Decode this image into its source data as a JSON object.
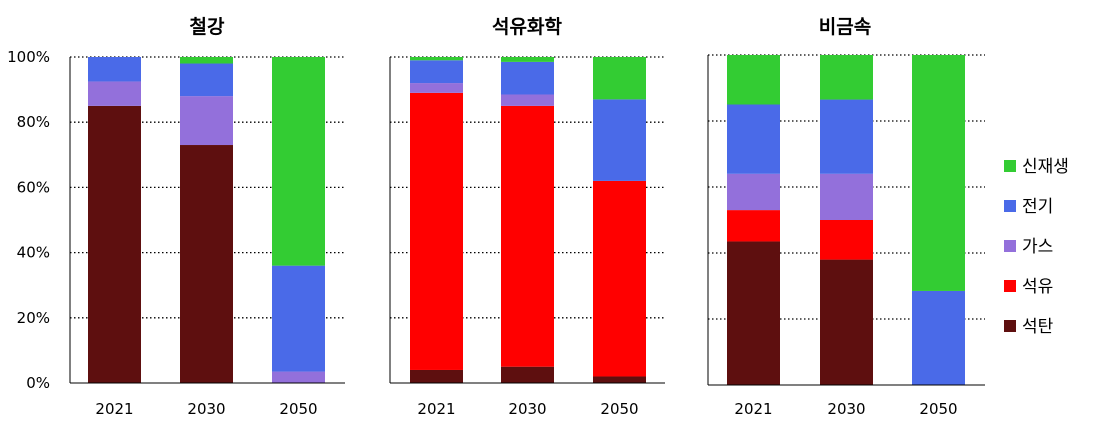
{
  "chart_data": [
    {
      "type": "bar",
      "stacked": true,
      "title": "철강",
      "categories": [
        "2021",
        "2030",
        "2050"
      ],
      "ylim": [
        0,
        100
      ],
      "yticks": [
        "0%",
        "20%",
        "40%",
        "60%",
        "80%",
        "100%"
      ],
      "grid": true,
      "series": [
        {
          "name": "석탄",
          "color": "#5e0f0f",
          "values": [
            85,
            73,
            0
          ]
        },
        {
          "name": "석유",
          "color": "#ff0000",
          "values": [
            0,
            0,
            0
          ]
        },
        {
          "name": "가스",
          "color": "#9370db",
          "values": [
            7.5,
            15,
            3.5
          ]
        },
        {
          "name": "전기",
          "color": "#4a6ae8",
          "values": [
            7.5,
            10,
            32.5
          ]
        },
        {
          "name": "신재생",
          "color": "#33cc33",
          "values": [
            0,
            2,
            64
          ]
        }
      ]
    },
    {
      "type": "bar",
      "stacked": true,
      "title": "석유화학",
      "categories": [
        "2021",
        "2030",
        "2050"
      ],
      "ylim": [
        0,
        100
      ],
      "grid": true,
      "series": [
        {
          "name": "석탄",
          "color": "#5e0f0f",
          "values": [
            4,
            5,
            2
          ]
        },
        {
          "name": "석유",
          "color": "#ff0000",
          "values": [
            85,
            80,
            60
          ]
        },
        {
          "name": "가스",
          "color": "#9370db",
          "values": [
            3,
            3.5,
            0
          ]
        },
        {
          "name": "전기",
          "color": "#4a6ae8",
          "values": [
            7,
            10,
            25
          ]
        },
        {
          "name": "신재생",
          "color": "#33cc33",
          "values": [
            1,
            1.5,
            13
          ]
        }
      ]
    },
    {
      "type": "bar",
      "stacked": true,
      "title": "비금속",
      "categories": [
        "2021",
        "2030",
        "2050"
      ],
      "ylim": [
        0,
        100
      ],
      "grid": true,
      "series": [
        {
          "name": "석탄",
          "color": "#5e0f0f",
          "values": [
            43.5,
            38,
            0
          ]
        },
        {
          "name": "석유",
          "color": "#ff0000",
          "values": [
            9.5,
            12,
            0
          ]
        },
        {
          "name": "가스",
          "color": "#9370db",
          "values": [
            11,
            14,
            0
          ]
        },
        {
          "name": "전기",
          "color": "#4a6ae8",
          "values": [
            21,
            22.5,
            28.5
          ]
        },
        {
          "name": "신재생",
          "color": "#33cc33",
          "values": [
            15,
            13.5,
            71.5
          ]
        }
      ]
    }
  ],
  "legend": {
    "position": "right",
    "items": [
      {
        "name": "신재생",
        "color": "#33cc33"
      },
      {
        "name": "전기",
        "color": "#4a6ae8"
      },
      {
        "name": "가스",
        "color": "#9370db"
      },
      {
        "name": "석유",
        "color": "#ff0000"
      },
      {
        "name": "석탄",
        "color": "#5e0f0f"
      }
    ]
  }
}
